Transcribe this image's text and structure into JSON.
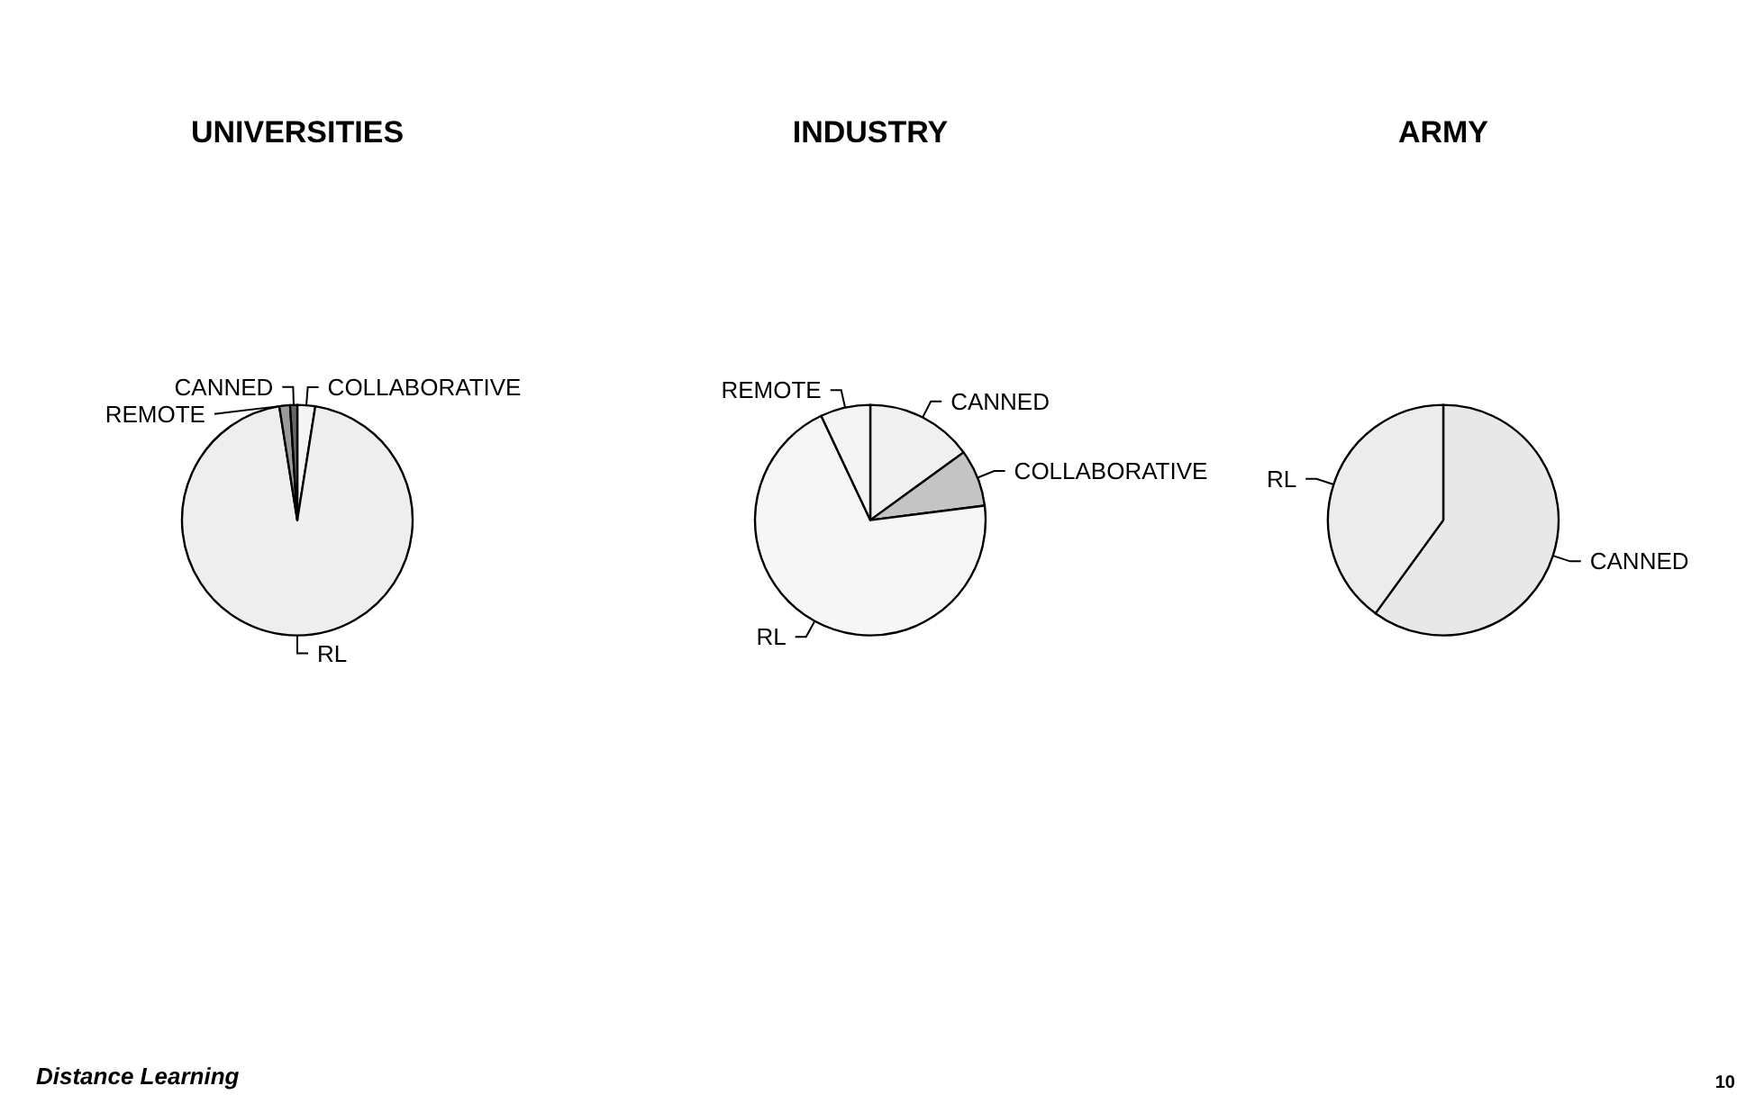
{
  "chart_data": [
    {
      "type": "pie",
      "title": "UNIVERSITIES",
      "categories": [
        "COLLABORATIVE",
        "RL",
        "REMOTE",
        "CANNED"
      ],
      "values": [
        2.5,
        95,
        1.5,
        1
      ],
      "colors": [
        "#f4f4f4",
        "#eeeeee",
        "#9a9a9a",
        "#666666"
      ]
    },
    {
      "type": "pie",
      "title": "INDUSTRY",
      "categories": [
        "CANNED",
        "COLLABORATIVE",
        "RL",
        "REMOTE"
      ],
      "values": [
        15,
        8,
        70,
        7
      ],
      "colors": [
        "#f0f0f0",
        "#c4c4c4",
        "#f6f6f6",
        "#f4f4f4"
      ]
    },
    {
      "type": "pie",
      "title": "ARMY",
      "categories": [
        "CANNED",
        "RL"
      ],
      "values": [
        60,
        40
      ],
      "colors": [
        "#e8e8e8",
        "#ececec"
      ],
      "annotations": [
        "Distance Learning",
        "10"
      ]
    }
  ]
}
